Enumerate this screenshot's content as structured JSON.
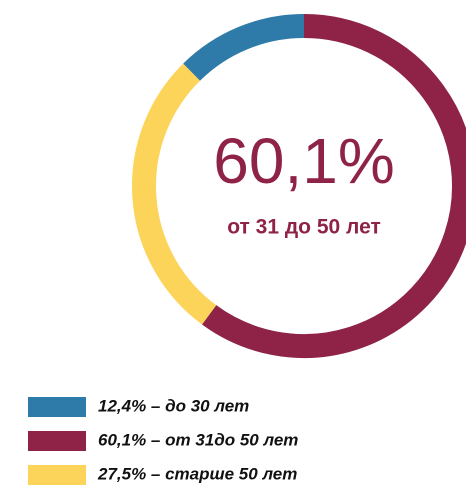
{
  "chart_data": {
    "type": "pie",
    "categories": [
      "12,4% – до 30 лет",
      "60,1% – от 31до 50 лет",
      "27,5% – старше 50 лет"
    ],
    "values": [
      12.4,
      60.1,
      27.5
    ],
    "colors": [
      "#2e7aa8",
      "#8e2347",
      "#fcd45a"
    ],
    "annotations": [
      "60,1%",
      "от 31 до 50 лет"
    ]
  }
}
